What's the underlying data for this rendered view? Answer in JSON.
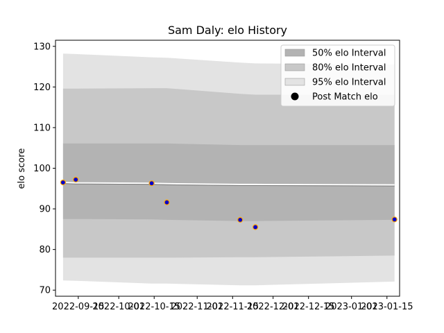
{
  "chart_data": {
    "type": "line",
    "title": "Sam Daly: elo History",
    "xlabel": "",
    "ylabel": "elo score",
    "x_ticks": [
      "2022-09-15",
      "2022-10-01",
      "2022-10-15",
      "2022-11-01",
      "2022-11-15",
      "2022-12-01",
      "2022-12-15",
      "2023-01-01",
      "2023-01-15"
    ],
    "y_ticks": [
      70,
      80,
      90,
      100,
      110,
      120,
      130
    ],
    "xlim": [
      "2022-09-06",
      "2023-01-20"
    ],
    "ylim": [
      68.5,
      131.5
    ],
    "grid": false,
    "legend_position": "top-right",
    "legend": [
      {
        "label": "50% elo Interval",
        "color": "#b3b3b3",
        "kind": "patch"
      },
      {
        "label": "80% elo Interval",
        "color": "#c8c8c8",
        "kind": "patch"
      },
      {
        "label": "95% elo Interval",
        "color": "#e3e3e3",
        "kind": "patch"
      },
      {
        "label": "Post Match elo",
        "color": "#000000",
        "kind": "marker"
      }
    ],
    "x": [
      "2022-09-09",
      "2022-09-14",
      "2022-10-14",
      "2022-10-20",
      "2022-11-18",
      "2022-11-24",
      "2023-01-18"
    ],
    "bands": {
      "p95_upper": [
        128.2,
        128.1,
        127.3,
        127.2,
        126.0,
        125.8,
        125.6
      ],
      "p80_upper": [
        119.6,
        119.6,
        119.7,
        119.7,
        118.3,
        118.1,
        118.1
      ],
      "p50_upper": [
        106.1,
        106.1,
        106.1,
        106.1,
        105.7,
        105.7,
        105.7
      ],
      "p50_lower": [
        87.5,
        87.5,
        87.4,
        87.3,
        87.0,
        87.0,
        87.3
      ],
      "p80_lower": [
        78.0,
        78.0,
        78.0,
        78.0,
        78.1,
        78.1,
        78.5
      ],
      "p95_lower": [
        72.4,
        72.3,
        71.6,
        71.6,
        71.2,
        71.2,
        72.1
      ]
    },
    "series": [
      {
        "values": [
          96.5,
          97.2,
          96.3,
          91.6,
          87.3,
          85.5,
          87.4
        ],
        "marker_color": "#0000cc",
        "edge_color": "#ffa500"
      }
    ],
    "mean_line": [
      96.5,
      96.4,
      96.3,
      96.2,
      96.0,
      96.0,
      95.9
    ],
    "colors": {
      "p95": "#e3e3e3",
      "p80": "#c8c8c8",
      "p50": "#b3b3b3",
      "mean_line": "#ffffff",
      "mean_line_inner": "#7a7a7a"
    }
  }
}
